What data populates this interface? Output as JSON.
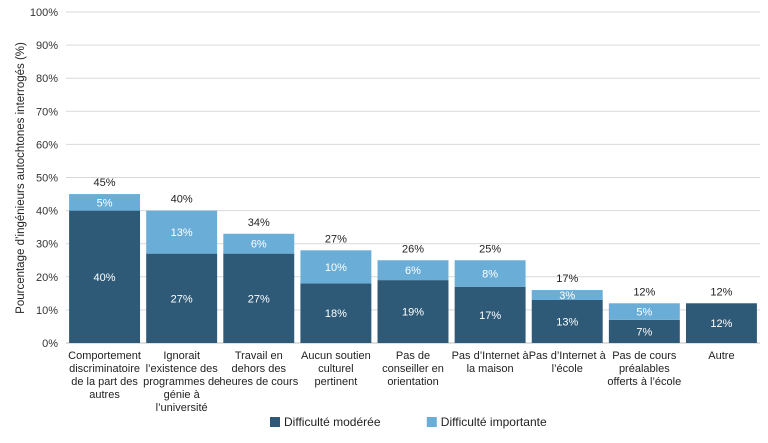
{
  "chart_data": {
    "type": "bar",
    "stacked": true,
    "title": "",
    "xlabel": "",
    "ylabel": "Pourcentage d’ingénieurs autochtones interrogés (%)",
    "ylim": [
      0,
      100
    ],
    "yticks": [
      "0%",
      "10%",
      "20%",
      "30%",
      "40%",
      "50%",
      "60%",
      "70%",
      "80%",
      "90%",
      "100%"
    ],
    "grid": true,
    "legend_position": "bottom",
    "categories": [
      [
        "Comportement",
        "discriminatoire",
        "de la part des",
        "autres"
      ],
      [
        "Ignorait",
        "l’existence des",
        "programmes de",
        "génie à",
        "l’université"
      ],
      [
        "Travail en",
        "dehors des",
        "heures de cours"
      ],
      [
        "Aucun soutien",
        "culturel",
        "pertinent"
      ],
      [
        "Pas de",
        "conseiller en",
        "orientation"
      ],
      [
        "Pas d’Internet à",
        "la maison"
      ],
      [
        "Pas d’Internet à",
        "l’école"
      ],
      [
        "Pas de cours",
        "préalables",
        "offerts à l’école"
      ],
      [
        "Autre"
      ]
    ],
    "series": [
      {
        "name": "Difficulté modérée",
        "color": "#2e5a78",
        "values": [
          40,
          27,
          27,
          18,
          19,
          17,
          13,
          7,
          12
        ],
        "labels": [
          "40%",
          "27%",
          "27%",
          "18%",
          "19%",
          "17%",
          "13%",
          "7%",
          "12%"
        ]
      },
      {
        "name": "Difficulté importante",
        "color": "#6aaed8",
        "values": [
          5,
          13,
          6,
          10,
          6,
          8,
          3,
          5,
          0
        ],
        "labels": [
          "5%",
          "13%",
          "6%",
          "10%",
          "6%",
          "8%",
          "3%",
          "5%",
          null
        ]
      }
    ],
    "totals": [
      "45%",
      "40%",
      "34%",
      "27%",
      "26%",
      "25%",
      "17%",
      "12%",
      "12%"
    ]
  }
}
